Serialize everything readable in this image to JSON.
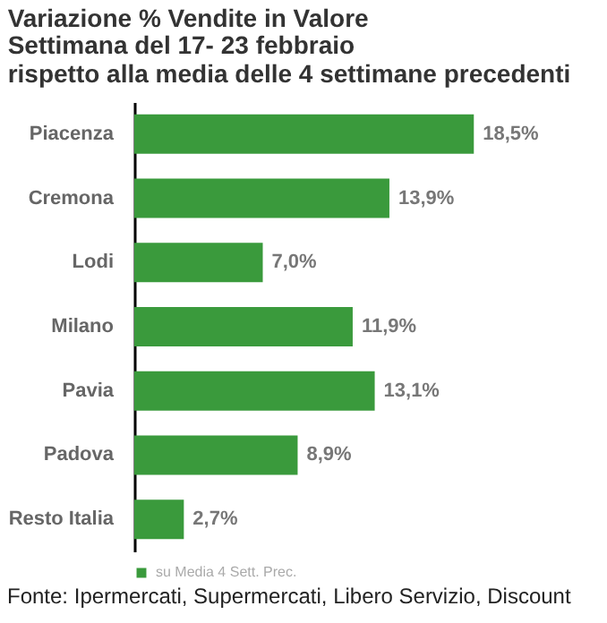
{
  "chart_data": {
    "type": "bar",
    "orientation": "horizontal",
    "title": "Variazione % Vendite in Valore",
    "subtitle": "Settimana del 17- 23 febbraio\nrispetto alla media delle 4 settimane precedenti",
    "categories": [
      "Piacenza",
      "Cremona",
      "Lodi",
      "Milano",
      "Pavia",
      "Padova",
      "Resto Italia"
    ],
    "series": [
      {
        "name": "su Media 4 Sett. Prec.",
        "color": "#3a9a3c",
        "values": [
          18.5,
          13.9,
          7.0,
          11.9,
          13.1,
          8.9,
          2.7
        ],
        "value_labels": [
          "18,5%",
          "13,9%",
          "7,0%",
          "11,9%",
          "13,1%",
          "8,9%",
          "2,7%"
        ]
      }
    ],
    "legend": "bottom",
    "annotations": [
      "Fonte: Ipermercati, Supermercati, Libero Servizio, Discount"
    ]
  }
}
